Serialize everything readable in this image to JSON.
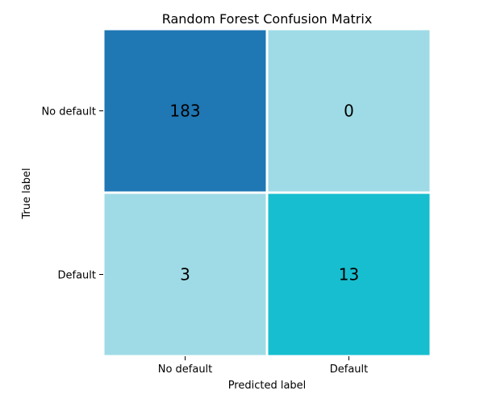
{
  "chart_data": {
    "type": "heatmap",
    "title": "Random Forest Confusion Matrix",
    "xlabel": "Predicted label",
    "ylabel": "True label",
    "x_categories": [
      "No default",
      "Default"
    ],
    "y_categories": [
      "No default",
      "Default"
    ],
    "values": [
      [
        183,
        0
      ],
      [
        3,
        13
      ]
    ],
    "cell_colors": [
      [
        "#1f77b4",
        "#9fdbe6"
      ],
      [
        "#9fdbe6",
        "#17becf"
      ]
    ],
    "grid": false,
    "legend": "none"
  }
}
